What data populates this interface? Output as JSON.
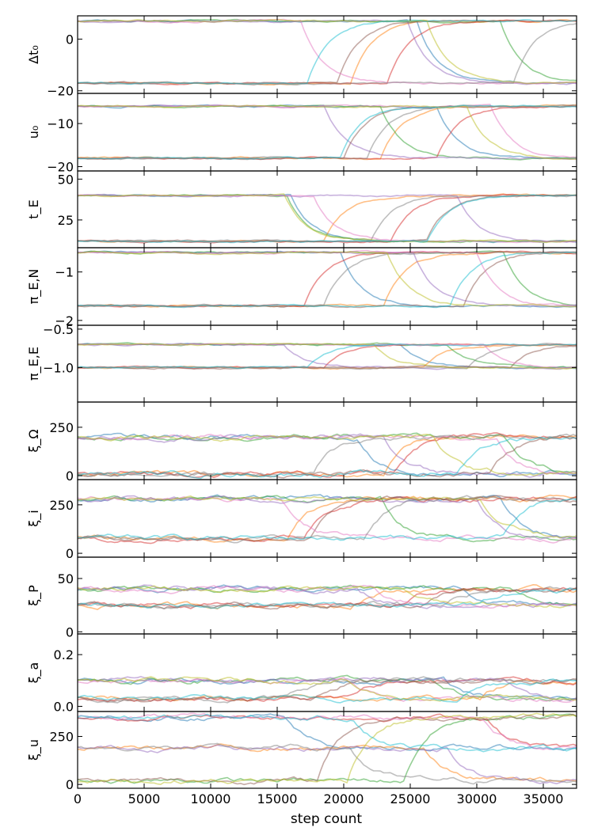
{
  "figure": {
    "xlabel": "step count",
    "x_ticks": [
      "0",
      "5000",
      "10000",
      "15000",
      "20000",
      "25000",
      "30000",
      "35000"
    ]
  },
  "palette": [
    "#1f77b4",
    "#ff7f0e",
    "#2ca02c",
    "#d62728",
    "#9467bd",
    "#8c564b",
    "#e377c2",
    "#7f7f7f",
    "#bcbd22",
    "#17becf"
  ],
  "chart_data": [
    {
      "type": "line",
      "ylabel": "Δt₀",
      "ylim": [
        -21,
        9
      ],
      "yticks": [
        0,
        -20
      ],
      "ytick_labels": [
        "0",
        "−20"
      ],
      "xlim": [
        0,
        37500
      ],
      "series_levels": [
        7,
        -17
      ]
    },
    {
      "type": "line",
      "ylabel": "u₀",
      "ylim": [
        -21,
        -3
      ],
      "yticks": [
        -10,
        -20
      ],
      "ytick_labels": [
        "−10",
        "−20"
      ],
      "xlim": [
        0,
        37500
      ],
      "series_levels": [
        -6,
        -18
      ]
    },
    {
      "type": "line",
      "ylabel": "t_E",
      "ylim": [
        8,
        55
      ],
      "yticks": [
        50,
        25
      ],
      "ytick_labels": [
        "50",
        "25"
      ],
      "xlim": [
        0,
        37500
      ],
      "series_levels": [
        40,
        12
      ]
    },
    {
      "type": "line",
      "ylabel": "π_E,N",
      "ylim": [
        -2.1,
        -0.5
      ],
      "yticks": [
        -1,
        -2
      ],
      "ytick_labels": [
        "−1",
        "−2"
      ],
      "xlim": [
        0,
        37500
      ],
      "series_levels": [
        -0.6,
        -1.7
      ]
    },
    {
      "type": "line",
      "ylabel": "π_E,E",
      "ylim": [
        -1.45,
        -0.45
      ],
      "yticks": [
        -0.5,
        -1.0
      ],
      "ytick_labels": [
        "−0.5",
        "−1.0"
      ],
      "xlim": [
        0,
        37500
      ],
      "series_levels": [
        -0.7,
        -1.0
      ]
    },
    {
      "type": "line",
      "ylabel": "ξ_Ω",
      "ylim": [
        -20,
        380
      ],
      "yticks": [
        250,
        0
      ],
      "ytick_labels": [
        "250",
        "0"
      ],
      "xlim": [
        0,
        37500
      ],
      "series_levels": [
        200,
        10
      ]
    },
    {
      "type": "line",
      "ylabel": "ξ_i",
      "ylim": [
        -20,
        380
      ],
      "yticks": [
        250,
        0
      ],
      "ytick_labels": [
        "250",
        "0"
      ],
      "xlim": [
        0,
        37500
      ],
      "series_levels": [
        280,
        80
      ]
    },
    {
      "type": "line",
      "ylabel": "ξ_P",
      "ylim": [
        -2,
        70
      ],
      "yticks": [
        50,
        0
      ],
      "ytick_labels": [
        "50",
        "0"
      ],
      "xlim": [
        0,
        37500
      ],
      "series_levels": [
        40,
        25
      ]
    },
    {
      "type": "line",
      "ylabel": "ξ_a",
      "ylim": [
        -0.02,
        0.28
      ],
      "yticks": [
        0.2,
        0.0
      ],
      "ytick_labels": [
        "0.2",
        "0.0"
      ],
      "xlim": [
        0,
        37500
      ],
      "series_levels": [
        0.1,
        0.03
      ]
    },
    {
      "type": "line",
      "ylabel": "ξ_u",
      "ylim": [
        -20,
        380
      ],
      "yticks": [
        250,
        0
      ],
      "ytick_labels": [
        "250",
        "0"
      ],
      "xlim": [
        0,
        37500
      ],
      "series_levels": [
        350,
        190,
        20
      ]
    }
  ]
}
